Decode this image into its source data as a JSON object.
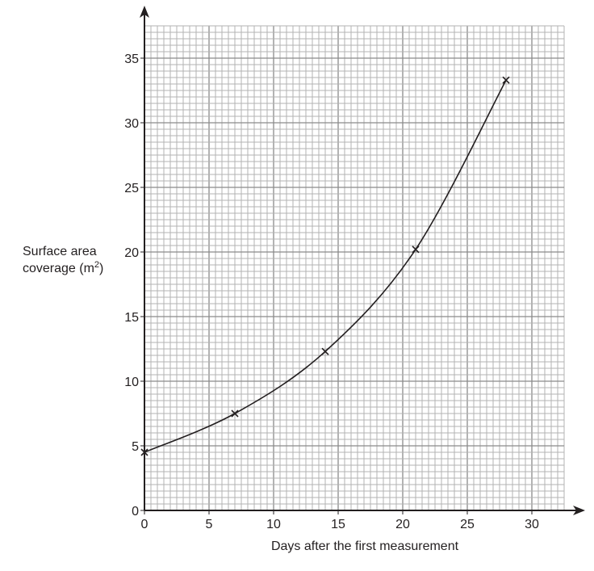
{
  "chart_data": {
    "type": "line",
    "title": "",
    "xlabel": "Days after the first measurement",
    "ylabel_line1": "Surface area",
    "ylabel_line2_prefix": "coverage (m",
    "ylabel_superscript": "2",
    "ylabel_line2_suffix": ")",
    "ylabel": "Surface area coverage (m²)",
    "x_ticks": [
      0,
      5,
      10,
      15,
      20,
      25,
      30
    ],
    "y_ticks": [
      0,
      5,
      10,
      15,
      20,
      25,
      30,
      35
    ],
    "xlim": [
      0,
      32.5
    ],
    "ylim": [
      0,
      37.5
    ],
    "grid": true,
    "grid_minor_step": 0.5,
    "grid_major_step": 5,
    "marker": "x",
    "series": [
      {
        "name": "Surface area coverage",
        "x": [
          0,
          7,
          14,
          21,
          28
        ],
        "values": [
          4.5,
          7.5,
          12.3,
          20.2,
          33.3
        ]
      }
    ],
    "legend": null
  },
  "colors": {
    "axis": "#231f20",
    "grid_minor": "#b3b3b3",
    "grid_major": "#8a8a8a",
    "curve": "#231f20"
  }
}
